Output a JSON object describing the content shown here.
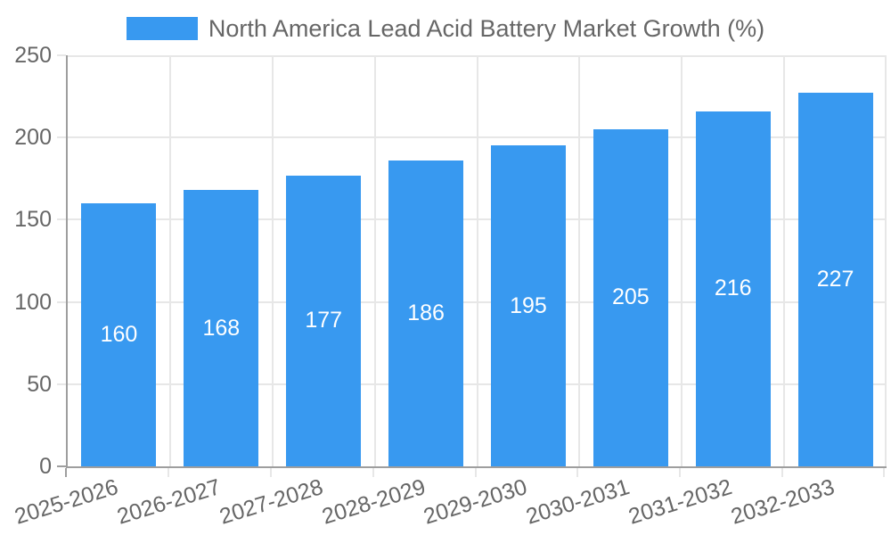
{
  "chart_data": {
    "type": "bar",
    "title": "North America Lead Acid Battery Market Growth (%)",
    "legend_entries": [
      "North America Lead Acid Battery Market Growth (%)"
    ],
    "categories": [
      "2025-2026",
      "2026-2027",
      "2027-2028",
      "2028-2029",
      "2029-2030",
      "2030-2031",
      "2031-2032",
      "2032-2033"
    ],
    "values": [
      160,
      168,
      177,
      186,
      195,
      205,
      216,
      227
    ],
    "bar_value_labels": [
      "160",
      "168",
      "177",
      "186",
      "195",
      "205",
      "216",
      "227"
    ],
    "xlabel": "",
    "ylabel": "",
    "ylim": [
      0,
      250
    ],
    "yticks": [
      0,
      50,
      100,
      150,
      200,
      250
    ],
    "grid": "both",
    "legend_position": "top-center",
    "x_label_rotation_deg": -17,
    "colors": {
      "bar": "#3899f0",
      "bar_value_label": "#ffffff",
      "axis_text": "#666666",
      "gridline": "#e7e7e7",
      "axis_line": "#9e9e9e",
      "background": "#ffffff"
    }
  }
}
